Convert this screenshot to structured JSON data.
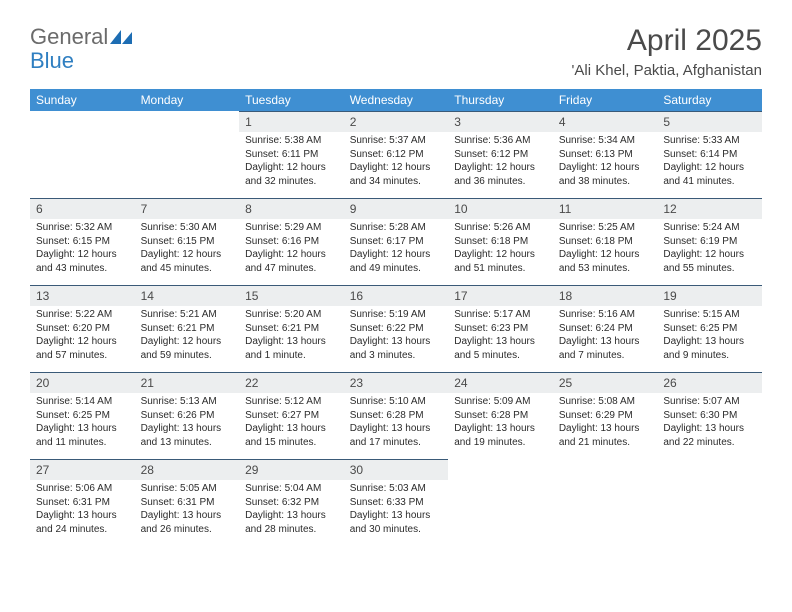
{
  "branding": {
    "logo_part1": "General",
    "logo_part2": "Blue",
    "logo_text_color": "#6b6b6b",
    "logo_accent_color": "#2f7fc1",
    "icon_color": "#1d6db3"
  },
  "header": {
    "month_title": "April 2025",
    "location": "'Ali Khel, Paktia, Afghanistan",
    "title_color": "#4a4a4a"
  },
  "calendar": {
    "header_bg": "#3f8fd2",
    "header_text_color": "#ffffff",
    "daynum_bg": "#eceeef",
    "daynum_border": "#3a5a78",
    "day_text_color": "#2b2b2b",
    "day_names": [
      "Sunday",
      "Monday",
      "Tuesday",
      "Wednesday",
      "Thursday",
      "Friday",
      "Saturday"
    ],
    "weeks": [
      [
        {
          "num": "",
          "lines": []
        },
        {
          "num": "",
          "lines": []
        },
        {
          "num": "1",
          "lines": [
            "Sunrise: 5:38 AM",
            "Sunset: 6:11 PM",
            "Daylight: 12 hours",
            "and 32 minutes."
          ]
        },
        {
          "num": "2",
          "lines": [
            "Sunrise: 5:37 AM",
            "Sunset: 6:12 PM",
            "Daylight: 12 hours",
            "and 34 minutes."
          ]
        },
        {
          "num": "3",
          "lines": [
            "Sunrise: 5:36 AM",
            "Sunset: 6:12 PM",
            "Daylight: 12 hours",
            "and 36 minutes."
          ]
        },
        {
          "num": "4",
          "lines": [
            "Sunrise: 5:34 AM",
            "Sunset: 6:13 PM",
            "Daylight: 12 hours",
            "and 38 minutes."
          ]
        },
        {
          "num": "5",
          "lines": [
            "Sunrise: 5:33 AM",
            "Sunset: 6:14 PM",
            "Daylight: 12 hours",
            "and 41 minutes."
          ]
        }
      ],
      [
        {
          "num": "6",
          "lines": [
            "Sunrise: 5:32 AM",
            "Sunset: 6:15 PM",
            "Daylight: 12 hours",
            "and 43 minutes."
          ]
        },
        {
          "num": "7",
          "lines": [
            "Sunrise: 5:30 AM",
            "Sunset: 6:15 PM",
            "Daylight: 12 hours",
            "and 45 minutes."
          ]
        },
        {
          "num": "8",
          "lines": [
            "Sunrise: 5:29 AM",
            "Sunset: 6:16 PM",
            "Daylight: 12 hours",
            "and 47 minutes."
          ]
        },
        {
          "num": "9",
          "lines": [
            "Sunrise: 5:28 AM",
            "Sunset: 6:17 PM",
            "Daylight: 12 hours",
            "and 49 minutes."
          ]
        },
        {
          "num": "10",
          "lines": [
            "Sunrise: 5:26 AM",
            "Sunset: 6:18 PM",
            "Daylight: 12 hours",
            "and 51 minutes."
          ]
        },
        {
          "num": "11",
          "lines": [
            "Sunrise: 5:25 AM",
            "Sunset: 6:18 PM",
            "Daylight: 12 hours",
            "and 53 minutes."
          ]
        },
        {
          "num": "12",
          "lines": [
            "Sunrise: 5:24 AM",
            "Sunset: 6:19 PM",
            "Daylight: 12 hours",
            "and 55 minutes."
          ]
        }
      ],
      [
        {
          "num": "13",
          "lines": [
            "Sunrise: 5:22 AM",
            "Sunset: 6:20 PM",
            "Daylight: 12 hours",
            "and 57 minutes."
          ]
        },
        {
          "num": "14",
          "lines": [
            "Sunrise: 5:21 AM",
            "Sunset: 6:21 PM",
            "Daylight: 12 hours",
            "and 59 minutes."
          ]
        },
        {
          "num": "15",
          "lines": [
            "Sunrise: 5:20 AM",
            "Sunset: 6:21 PM",
            "Daylight: 13 hours",
            "and 1 minute."
          ]
        },
        {
          "num": "16",
          "lines": [
            "Sunrise: 5:19 AM",
            "Sunset: 6:22 PM",
            "Daylight: 13 hours",
            "and 3 minutes."
          ]
        },
        {
          "num": "17",
          "lines": [
            "Sunrise: 5:17 AM",
            "Sunset: 6:23 PM",
            "Daylight: 13 hours",
            "and 5 minutes."
          ]
        },
        {
          "num": "18",
          "lines": [
            "Sunrise: 5:16 AM",
            "Sunset: 6:24 PM",
            "Daylight: 13 hours",
            "and 7 minutes."
          ]
        },
        {
          "num": "19",
          "lines": [
            "Sunrise: 5:15 AM",
            "Sunset: 6:25 PM",
            "Daylight: 13 hours",
            "and 9 minutes."
          ]
        }
      ],
      [
        {
          "num": "20",
          "lines": [
            "Sunrise: 5:14 AM",
            "Sunset: 6:25 PM",
            "Daylight: 13 hours",
            "and 11 minutes."
          ]
        },
        {
          "num": "21",
          "lines": [
            "Sunrise: 5:13 AM",
            "Sunset: 6:26 PM",
            "Daylight: 13 hours",
            "and 13 minutes."
          ]
        },
        {
          "num": "22",
          "lines": [
            "Sunrise: 5:12 AM",
            "Sunset: 6:27 PM",
            "Daylight: 13 hours",
            "and 15 minutes."
          ]
        },
        {
          "num": "23",
          "lines": [
            "Sunrise: 5:10 AM",
            "Sunset: 6:28 PM",
            "Daylight: 13 hours",
            "and 17 minutes."
          ]
        },
        {
          "num": "24",
          "lines": [
            "Sunrise: 5:09 AM",
            "Sunset: 6:28 PM",
            "Daylight: 13 hours",
            "and 19 minutes."
          ]
        },
        {
          "num": "25",
          "lines": [
            "Sunrise: 5:08 AM",
            "Sunset: 6:29 PM",
            "Daylight: 13 hours",
            "and 21 minutes."
          ]
        },
        {
          "num": "26",
          "lines": [
            "Sunrise: 5:07 AM",
            "Sunset: 6:30 PM",
            "Daylight: 13 hours",
            "and 22 minutes."
          ]
        }
      ],
      [
        {
          "num": "27",
          "lines": [
            "Sunrise: 5:06 AM",
            "Sunset: 6:31 PM",
            "Daylight: 13 hours",
            "and 24 minutes."
          ]
        },
        {
          "num": "28",
          "lines": [
            "Sunrise: 5:05 AM",
            "Sunset: 6:31 PM",
            "Daylight: 13 hours",
            "and 26 minutes."
          ]
        },
        {
          "num": "29",
          "lines": [
            "Sunrise: 5:04 AM",
            "Sunset: 6:32 PM",
            "Daylight: 13 hours",
            "and 28 minutes."
          ]
        },
        {
          "num": "30",
          "lines": [
            "Sunrise: 5:03 AM",
            "Sunset: 6:33 PM",
            "Daylight: 13 hours",
            "and 30 minutes."
          ]
        },
        {
          "num": "",
          "lines": []
        },
        {
          "num": "",
          "lines": []
        },
        {
          "num": "",
          "lines": []
        }
      ]
    ]
  }
}
